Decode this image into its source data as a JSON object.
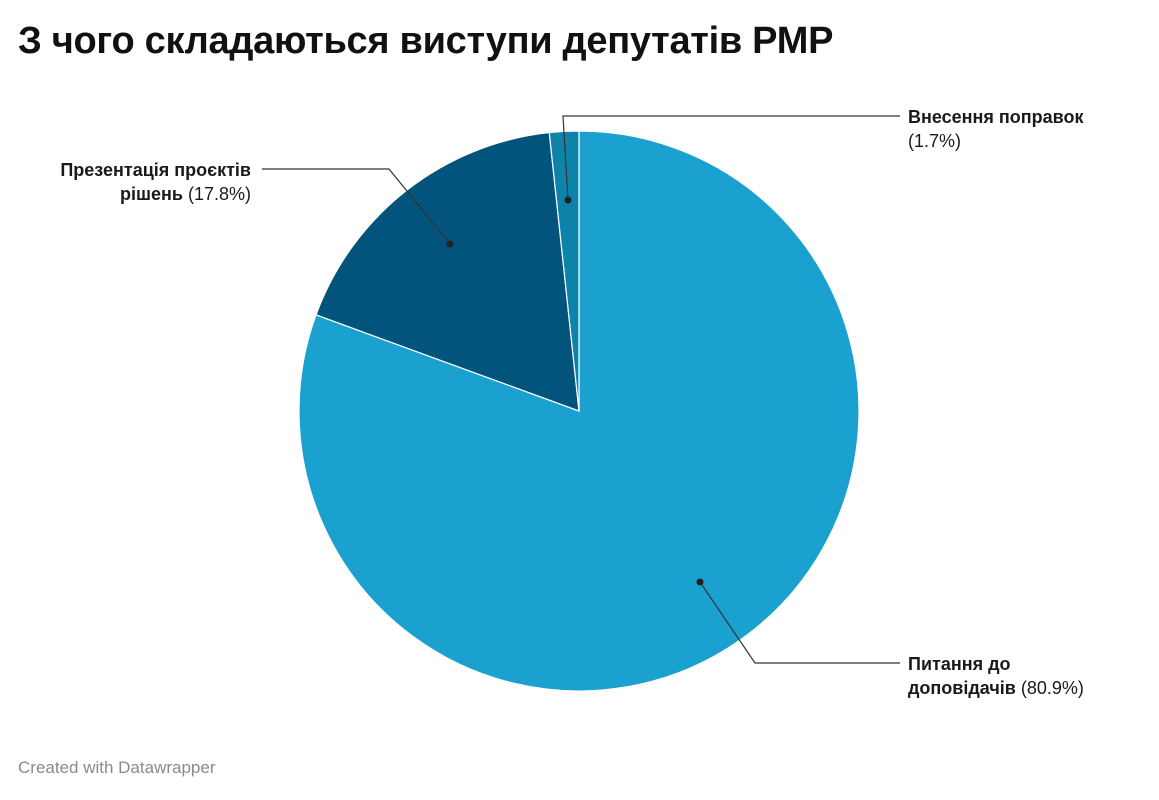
{
  "title": "З чого складаються виступи депутатів РМР",
  "footer": "Created with Datawrapper",
  "chart_data": {
    "type": "pie",
    "title": "З чого складаються виступи депутатів РМР",
    "slices": [
      {
        "name": "Питання до доповідачів",
        "name_lines": [
          "Питання до",
          "доповідачів"
        ],
        "value": 80.9,
        "value_label": "(80.9%)",
        "color": "#1aa1cf"
      },
      {
        "name": "Презентація проєктів рішень",
        "name_lines": [
          "Презентація проєктів",
          "рішень"
        ],
        "value": 17.8,
        "value_label": "(17.8%)",
        "color": "#02547c"
      },
      {
        "name": "Внесення поправок",
        "name_lines": [
          "Внесення поправок"
        ],
        "value": 1.7,
        "value_label": "(1.7%)",
        "color": "#0e83a9"
      }
    ],
    "start_angle": "12 o'clock",
    "direction": "clockwise",
    "legend": "none (direct labels)"
  }
}
